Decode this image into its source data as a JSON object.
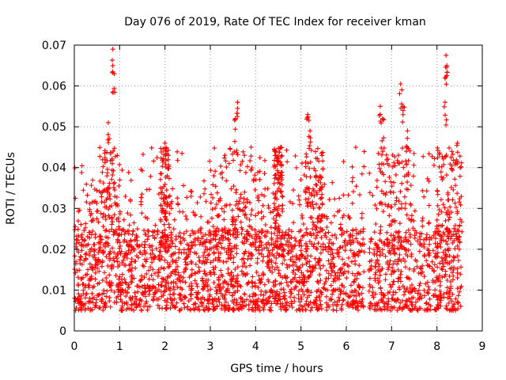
{
  "chart_data": {
    "type": "scatter",
    "title": "Day 076 of 2019, Rate Of TEC Index for receiver kman",
    "xlabel": "GPS time / hours",
    "ylabel": "ROTI / TECUs",
    "xlim": [
      0,
      9
    ],
    "ylim": [
      0,
      0.07
    ],
    "xticks": [
      0,
      1,
      2,
      3,
      4,
      5,
      6,
      7,
      8,
      9
    ],
    "xtick_labels": [
      "0",
      "1",
      "2",
      "3",
      "4",
      "5",
      "6",
      "7",
      "8",
      "9"
    ],
    "yticks": [
      0,
      0.01,
      0.02,
      0.03,
      0.04,
      0.05,
      0.06,
      0.07
    ],
    "ytick_labels": [
      "0",
      "0.01",
      "0.02",
      "0.03",
      "0.04",
      "0.05",
      "0.06",
      "0.07"
    ],
    "grid": true,
    "marker": "+",
    "color": "#ff0000",
    "data_gap": [
      6.4,
      6.5
    ],
    "data_range": [
      0.0,
      8.55
    ],
    "baseline_range": [
      0.005,
      0.025
    ],
    "peaks": [
      {
        "x": 0.85,
        "y": 0.069
      },
      {
        "x": 0.88,
        "y": 0.063
      },
      {
        "x": 0.75,
        "y": 0.051
      },
      {
        "x": 2.0,
        "y": 0.046
      },
      {
        "x": 3.6,
        "y": 0.056
      },
      {
        "x": 3.55,
        "y": 0.052
      },
      {
        "x": 3.9,
        "y": 0.045
      },
      {
        "x": 4.55,
        "y": 0.045
      },
      {
        "x": 5.15,
        "y": 0.053
      },
      {
        "x": 5.2,
        "y": 0.049
      },
      {
        "x": 6.75,
        "y": 0.055
      },
      {
        "x": 6.8,
        "y": 0.052
      },
      {
        "x": 7.2,
        "y": 0.0605
      },
      {
        "x": 7.25,
        "y": 0.055
      },
      {
        "x": 7.35,
        "y": 0.049
      },
      {
        "x": 8.2,
        "y": 0.0675
      },
      {
        "x": 8.22,
        "y": 0.065
      },
      {
        "x": 8.18,
        "y": 0.056
      },
      {
        "x": 8.45,
        "y": 0.046
      }
    ]
  }
}
